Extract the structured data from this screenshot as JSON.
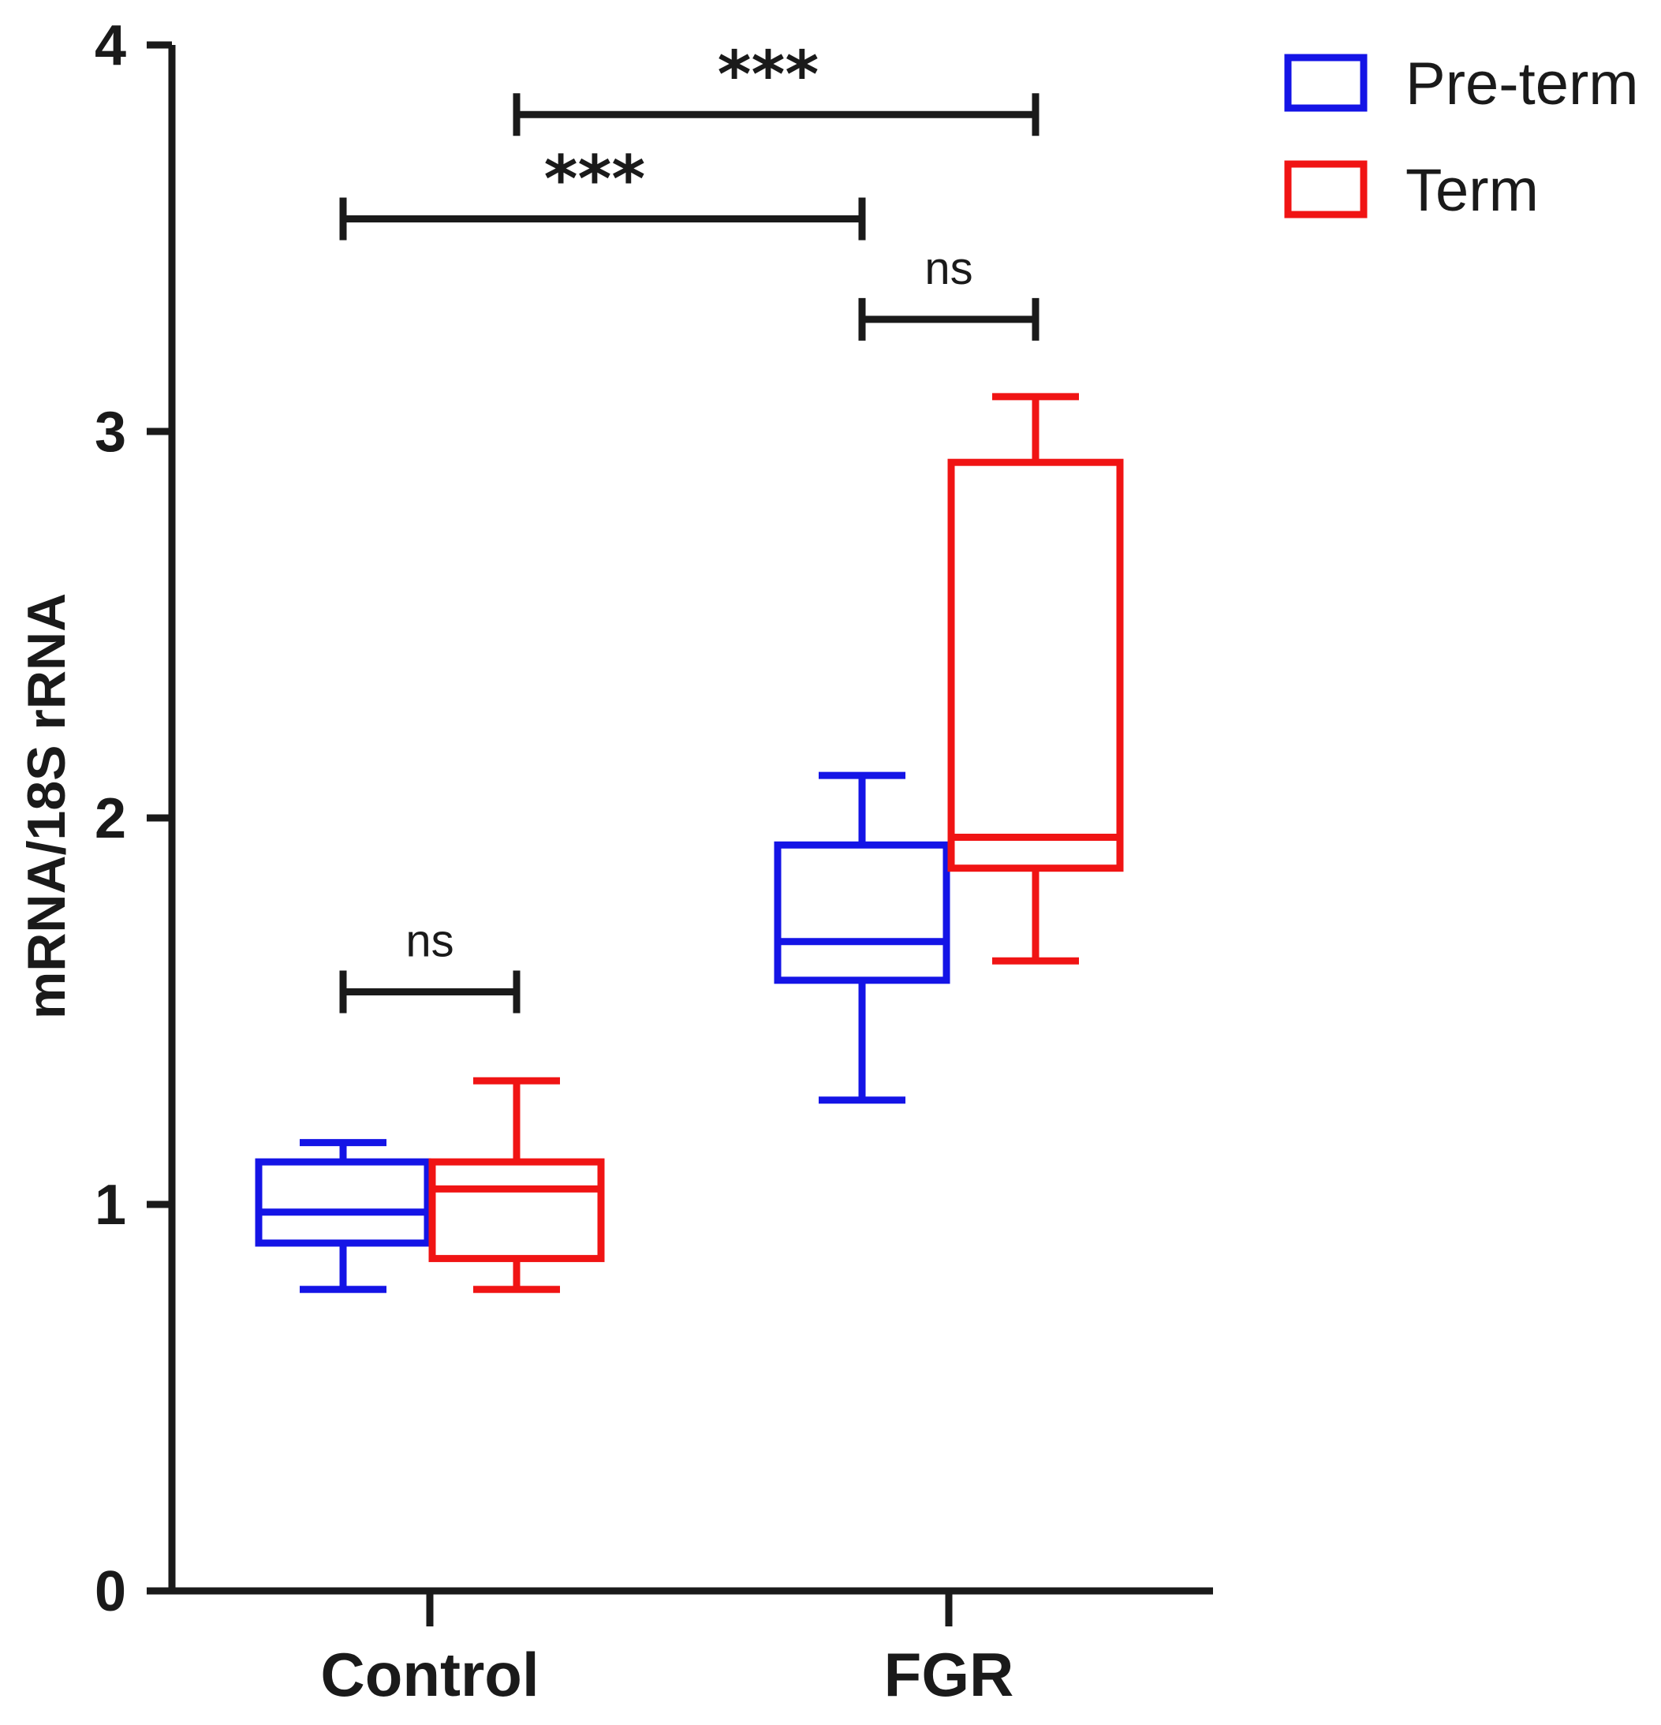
{
  "chart_data": {
    "type": "box",
    "title": "",
    "xlabel": "",
    "ylabel": "mRNA/18S rRNA",
    "ylim": [
      0,
      4
    ],
    "yticks": [
      "0",
      "1",
      "2",
      "3",
      "4"
    ],
    "categories": [
      "Control",
      "FGR"
    ],
    "legend": {
      "position": "top-right"
    },
    "series": [
      {
        "name": "Pre-term",
        "color": "#1414e6",
        "boxes": [
          {
            "category": "Control",
            "min": 0.78,
            "q1": 0.9,
            "median": 0.98,
            "q3": 1.11,
            "max": 1.16
          },
          {
            "category": "FGR",
            "min": 1.27,
            "q1": 1.58,
            "median": 1.68,
            "q3": 1.93,
            "max": 2.11
          }
        ]
      },
      {
        "name": "Term",
        "color": "#f01414",
        "boxes": [
          {
            "category": "Control",
            "min": 0.78,
            "q1": 0.86,
            "median": 1.04,
            "q3": 1.11,
            "max": 1.32
          },
          {
            "category": "FGR",
            "min": 1.63,
            "q1": 1.87,
            "median": 1.95,
            "q3": 2.92,
            "max": 3.09
          }
        ]
      }
    ],
    "significance": [
      {
        "from": "Pre-term FGR",
        "to": "Term FGR",
        "label": "ns",
        "y": 3.29,
        "style": "ns"
      },
      {
        "from": "Pre-term Control",
        "to": "Term Control",
        "label": "ns",
        "y": 1.55,
        "style": "ns"
      },
      {
        "from": "Pre-term Control",
        "to": "Pre-term FGR",
        "label": "***",
        "y": 3.55,
        "style": "star"
      },
      {
        "from": "Term Control",
        "to": "Term FGR",
        "label": "***",
        "y": 3.82,
        "style": "star"
      }
    ]
  }
}
